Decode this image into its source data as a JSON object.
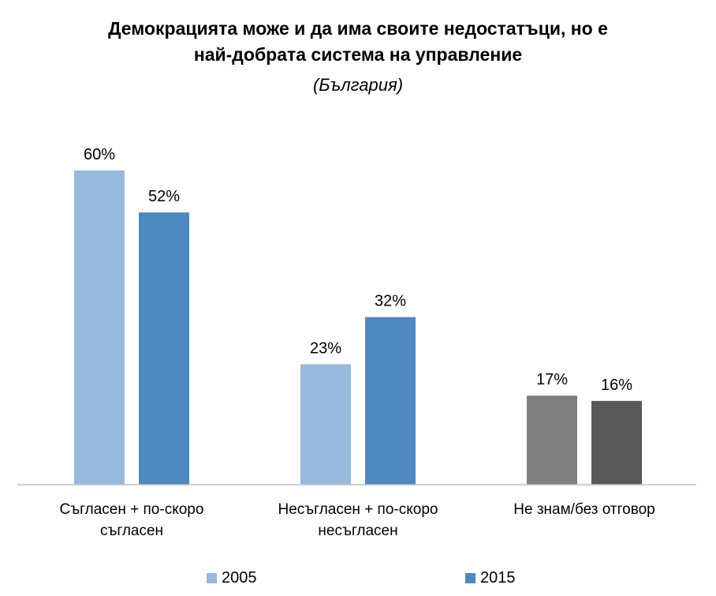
{
  "chart_data": {
    "type": "bar",
    "title": "Демокрацията може и да има своите недостатъци, но е най-добрата система на управление",
    "title_lines": [
      "Демокрацията може и да има своите недостатъци, но е",
      "най-добрата система на управление"
    ],
    "subtitle": "(България)",
    "categories": [
      "Съгласен + по-скоро съгласен",
      "Несъгласен + по-скоро несъгласен",
      "Не знам/без отговор"
    ],
    "category_lines": [
      [
        "Съгласен + по-скоро",
        "съгласен"
      ],
      [
        "Несъгласен + по-скоро",
        "несъгласен"
      ],
      [
        "Не знам/без отговор"
      ]
    ],
    "series": [
      {
        "name": "2005",
        "values": [
          60,
          23,
          17
        ],
        "labels": [
          "60%",
          "23%",
          "17%"
        ],
        "color": "#98b9de",
        "point_colors": [
          "#98b9de",
          "#98b9de",
          "#808080"
        ]
      },
      {
        "name": "2015",
        "values": [
          52,
          32,
          16
        ],
        "labels": [
          "52%",
          "32%",
          "16%"
        ],
        "color": "#4f89bf",
        "point_colors": [
          "#4f89bf",
          "#4f89bf",
          "#595959"
        ]
      }
    ],
    "unit": "%",
    "ylim": [
      0,
      60
    ],
    "grid": false,
    "legend_position": "bottom"
  }
}
